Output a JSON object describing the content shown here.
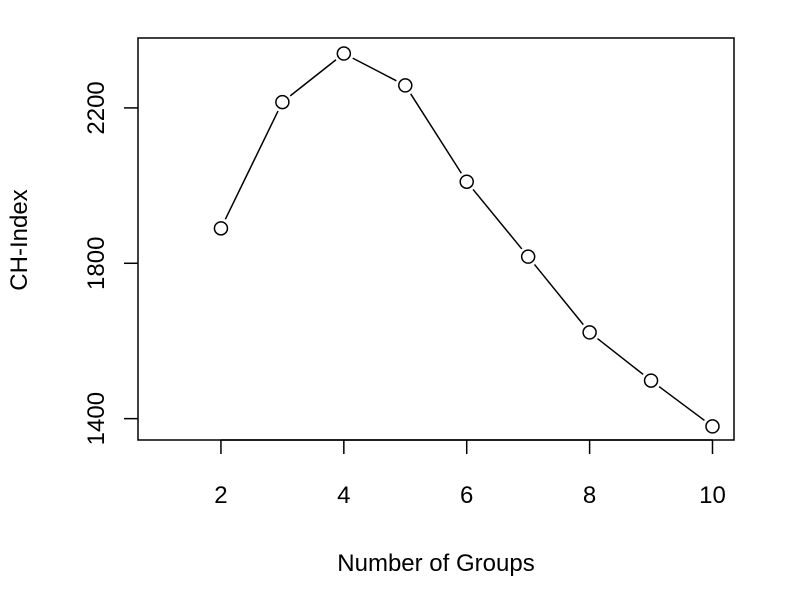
{
  "chart_data": {
    "type": "line",
    "title": "",
    "xlabel": "Number of Groups",
    "ylabel": "CH-Index",
    "x": [
      2,
      3,
      4,
      5,
      6,
      7,
      8,
      9,
      10
    ],
    "series": [
      {
        "values": [
          1890,
          2215,
          2340,
          2258,
          2010,
          1817,
          1622,
          1498,
          1380
        ]
      }
    ],
    "xticks": [
      2,
      4,
      6,
      8,
      10
    ],
    "xtick_labels": [
      "2",
      "4",
      "6",
      "8",
      "10"
    ],
    "yticks": [
      1400,
      1800,
      2200
    ],
    "ytick_labels": [
      "1400",
      "1800",
      "2200"
    ],
    "xlim": [
      0.65,
      10.35
    ],
    "ylim": [
      1345,
      2380
    ],
    "marker": "open-circle",
    "grid": false,
    "legend": "none"
  }
}
